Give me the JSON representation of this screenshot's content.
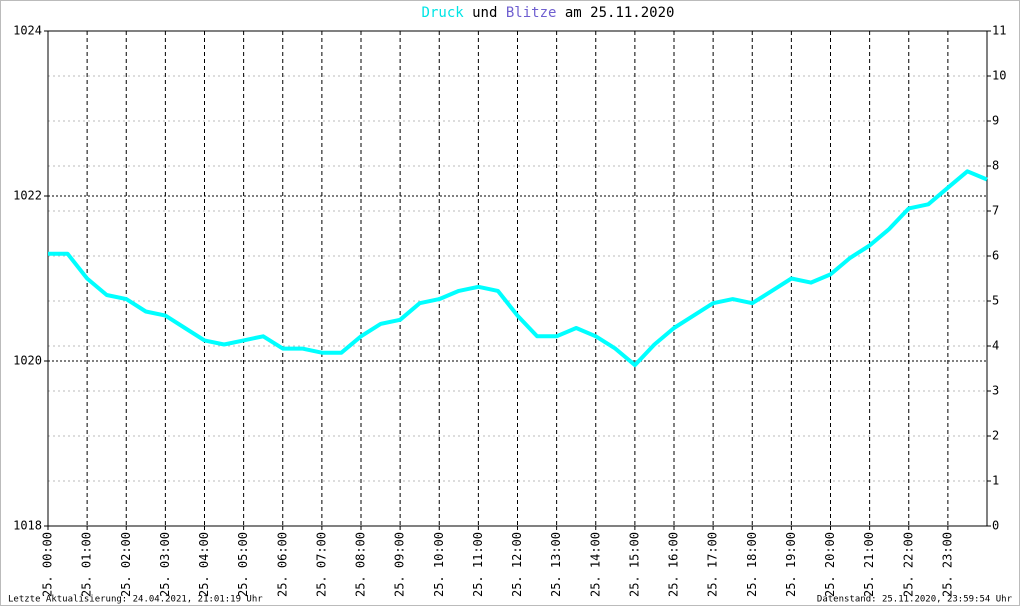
{
  "chart_data": {
    "type": "line",
    "title_parts": [
      {
        "text": "Druck",
        "color": "#00e5e5"
      },
      {
        "text": "und",
        "color": "#000000"
      },
      {
        "text": "Blitze",
        "color": "#6f5fd0"
      },
      {
        "text": "am 25.11.2020",
        "color": "#000000"
      }
    ],
    "footer_left": "Letzte Aktualisierung: 24.04.2021, 21:01:19 Uhr",
    "footer_right": "Datenstand: 25.11.2020, 23:59:54 Uhr",
    "x": [
      0,
      0.5,
      1,
      1.5,
      2,
      2.5,
      3,
      3.5,
      4,
      4.5,
      5,
      5.5,
      6,
      6.5,
      7,
      7.5,
      8,
      8.5,
      9,
      9.5,
      10,
      10.5,
      11,
      11.5,
      12,
      12.5,
      13,
      13.5,
      14,
      14.5,
      15,
      15.5,
      16,
      16.5,
      17,
      17.5,
      18,
      18.5,
      19,
      19.5,
      20,
      20.5,
      21,
      21.5,
      22,
      22.5,
      23,
      23.5,
      24
    ],
    "series": [
      {
        "name": "Druck",
        "color": "#00ffff",
        "values": [
          1021.3,
          1021.3,
          1021.0,
          1020.8,
          1020.75,
          1020.6,
          1020.55,
          1020.4,
          1020.25,
          1020.2,
          1020.25,
          1020.3,
          1020.15,
          1020.15,
          1020.1,
          1020.1,
          1020.3,
          1020.45,
          1020.5,
          1020.7,
          1020.75,
          1020.85,
          1020.9,
          1020.85,
          1020.55,
          1020.3,
          1020.3,
          1020.4,
          1020.3,
          1020.15,
          1019.95,
          1020.2,
          1020.4,
          1020.55,
          1020.7,
          1020.75,
          1020.7,
          1020.85,
          1021.0,
          1020.95,
          1021.05,
          1021.25,
          1021.4,
          1021.6,
          1021.85,
          1021.9,
          1022.1,
          1022.3,
          1022.2
        ]
      }
    ],
    "xlim": [
      0,
      24
    ],
    "xticks": [
      {
        "value": 0,
        "label": "25. 00:00"
      },
      {
        "value": 1,
        "label": "25. 01:00"
      },
      {
        "value": 2,
        "label": "25. 02:00"
      },
      {
        "value": 3,
        "label": "25. 03:00"
      },
      {
        "value": 4,
        "label": "25. 04:00"
      },
      {
        "value": 5,
        "label": "25. 05:00"
      },
      {
        "value": 6,
        "label": "25. 06:00"
      },
      {
        "value": 7,
        "label": "25. 07:00"
      },
      {
        "value": 8,
        "label": "25. 08:00"
      },
      {
        "value": 9,
        "label": "25. 09:00"
      },
      {
        "value": 10,
        "label": "25. 10:00"
      },
      {
        "value": 11,
        "label": "25. 11:00"
      },
      {
        "value": 12,
        "label": "25. 12:00"
      },
      {
        "value": 13,
        "label": "25. 13:00"
      },
      {
        "value": 14,
        "label": "25. 14:00"
      },
      {
        "value": 15,
        "label": "25. 15:00"
      },
      {
        "value": 16,
        "label": "25. 16:00"
      },
      {
        "value": 17,
        "label": "25. 17:00"
      },
      {
        "value": 18,
        "label": "25. 18:00"
      },
      {
        "value": 19,
        "label": "25. 19:00"
      },
      {
        "value": 20,
        "label": "25. 20:00"
      },
      {
        "value": 21,
        "label": "25. 21:00"
      },
      {
        "value": 22,
        "label": "25. 22:00"
      },
      {
        "value": 23,
        "label": "25. 23:00"
      }
    ],
    "ylim": [
      1018,
      1024
    ],
    "yticks": [
      1018,
      1020,
      1022,
      1024
    ],
    "y2lim": [
      0,
      11
    ],
    "y2ticks": [
      0,
      1,
      2,
      3,
      4,
      5,
      6,
      7,
      8,
      9,
      10,
      11
    ],
    "grid": true
  }
}
